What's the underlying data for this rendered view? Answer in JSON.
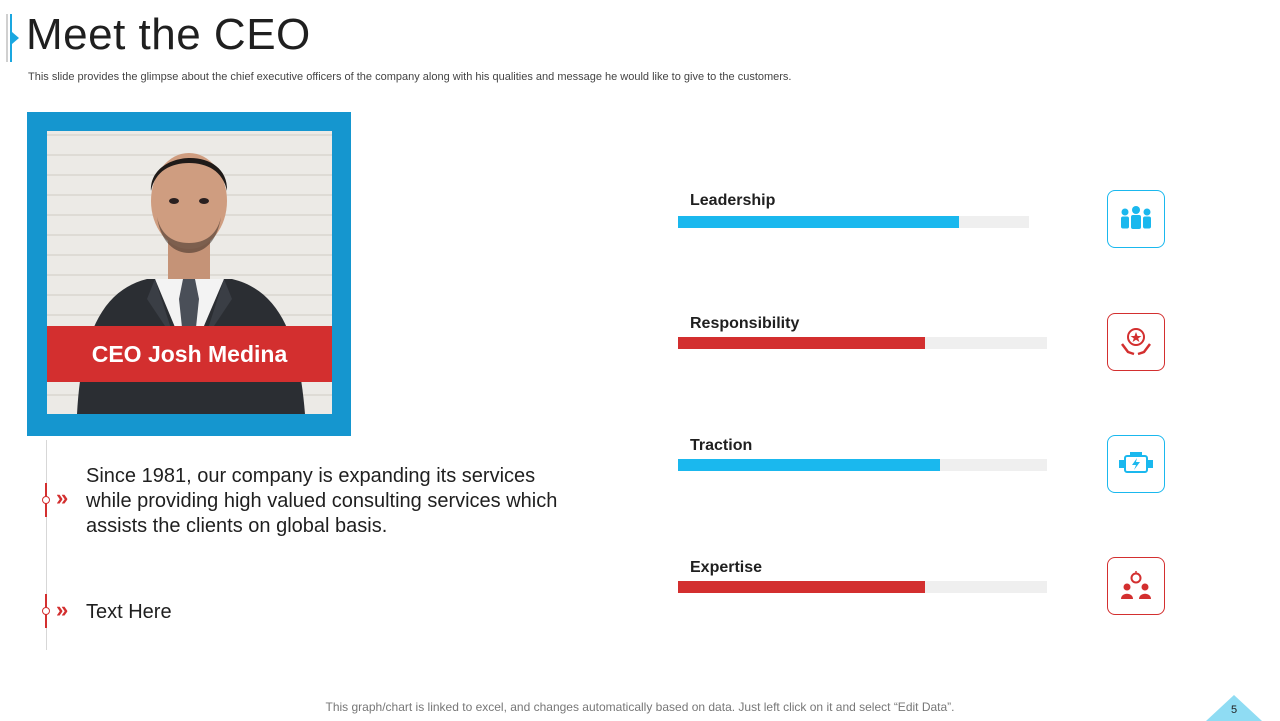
{
  "slide": {
    "title": "Meet the CEO",
    "subtitle": "This slide provides the glimpse about the chief executive officers of the company along with his qualities and message he would like to give to the customers.",
    "ceo_name": "CEO Josh Medina",
    "bullets": [
      "Since 1981, our company is expanding its services while providing high valued consulting services which assists the clients on global basis.",
      "Text Here"
    ],
    "footer_note": "This graph/chart is linked to excel, and changes automatically based on data. Just left click on it and select “Edit Data”.",
    "page_number": "5"
  },
  "skills": [
    {
      "label": "Leadership",
      "value": 80,
      "color": "#1ab8ee",
      "icon": "team-icon"
    },
    {
      "label": "Responsibility",
      "value": 67,
      "color": "#d32f2f",
      "icon": "hands-star-icon"
    },
    {
      "label": "Traction",
      "value": 71,
      "color": "#1ab8ee",
      "icon": "engine-icon"
    },
    {
      "label": "Expertise",
      "value": 67,
      "color": "#d32f2f",
      "icon": "idea-people-icon"
    }
  ],
  "colors": {
    "accent_blue": "#1596cf",
    "accent_red": "#d32f2f",
    "bar_blue": "#1ab8ee",
    "track": "#efefef"
  }
}
